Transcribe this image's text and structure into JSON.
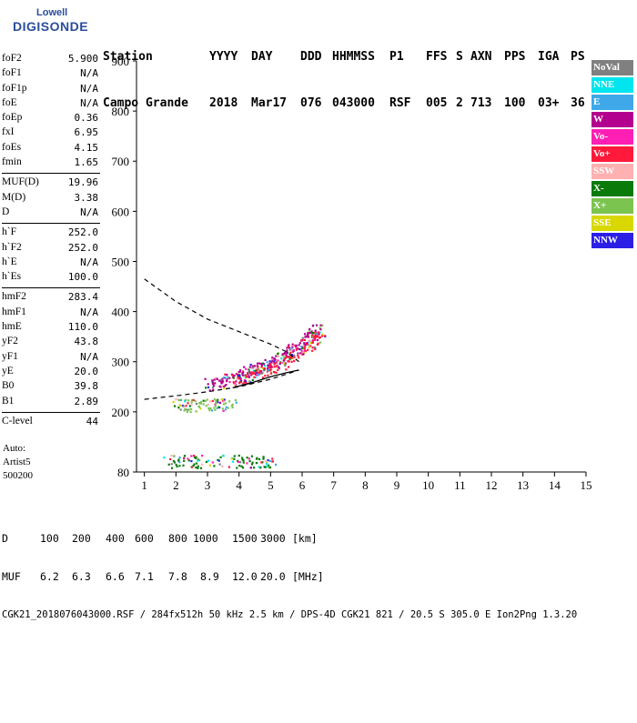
{
  "logo": {
    "line1": "Lowell",
    "line2": "DIGISONDE"
  },
  "header": {
    "row1": [
      "Station",
      "YYYY",
      "DAY",
      "DDD",
      "HHMMSS",
      "P1",
      "FFS",
      "S",
      "AXN",
      "PPS",
      "IGA",
      "PS"
    ],
    "row2": [
      "Campo Grande",
      "2018",
      "Mar17",
      "076",
      "043000",
      "RSF",
      "005",
      "2",
      "713",
      "100",
      "03+",
      "36"
    ]
  },
  "params": [
    [
      {
        "name": "foF2",
        "value": "5.900"
      },
      {
        "name": "foF1",
        "value": "N/A"
      },
      {
        "name": "foF1p",
        "value": "N/A"
      },
      {
        "name": "foE",
        "value": "N/A"
      },
      {
        "name": "foEp",
        "value": "0.36"
      },
      {
        "name": "fxI",
        "value": "6.95"
      },
      {
        "name": "foEs",
        "value": "4.15"
      },
      {
        "name": "fmin",
        "value": "1.65"
      }
    ],
    [
      {
        "name": "MUF(D)",
        "value": "19.96"
      },
      {
        "name": "M(D)",
        "value": "3.38"
      },
      {
        "name": "D",
        "value": "N/A"
      }
    ],
    [
      {
        "name": "h`F",
        "value": "252.0"
      },
      {
        "name": "h`F2",
        "value": "252.0"
      },
      {
        "name": "h`E",
        "value": "N/A"
      },
      {
        "name": "h`Es",
        "value": "100.0"
      }
    ],
    [
      {
        "name": "hmF2",
        "value": "283.4"
      },
      {
        "name": "hmF1",
        "value": "N/A"
      },
      {
        "name": "hmE",
        "value": "110.0"
      },
      {
        "name": "yF2",
        "value": "43.8"
      },
      {
        "name": "yF1",
        "value": "N/A"
      },
      {
        "name": "yE",
        "value": "20.0"
      },
      {
        "name": "B0",
        "value": "39.8"
      },
      {
        "name": "B1",
        "value": "2.89"
      }
    ],
    [
      {
        "name": "C-level",
        "value": "44"
      }
    ]
  ],
  "auto": {
    "line1": "Auto:",
    "line2": "Artist5",
    "line3": "500200"
  },
  "legend": [
    {
      "label": "NoVal",
      "color": "#808080"
    },
    {
      "label": "NNE",
      "color": "#00e5ee"
    },
    {
      "label": "E",
      "color": "#3fa8e8"
    },
    {
      "label": "W",
      "color": "#b3008f"
    },
    {
      "label": "Vo-",
      "color": "#ff1fb4"
    },
    {
      "label": "Vo+",
      "color": "#ff1a3c"
    },
    {
      "label": "SSW",
      "color": "#ffb0b0"
    },
    {
      "label": "X-",
      "color": "#0a7a0a"
    },
    {
      "label": "X+",
      "color": "#7cc450"
    },
    {
      "label": "SSE",
      "color": "#d8d800"
    },
    {
      "label": "NNW",
      "color": "#2b1fe6"
    }
  ],
  "bottom": {
    "row_d": [
      "D",
      "100",
      "200",
      "400",
      "600",
      "800",
      "1000",
      "1500",
      "3000",
      "[km]"
    ],
    "row_muf": [
      "MUF",
      "6.2",
      "6.3",
      "6.6",
      "7.1",
      "7.8",
      "8.9",
      "12.0",
      "20.0",
      "[MHz]"
    ],
    "footer": "CGK21_2018076043000.RSF / 284fx512h 50 kHz 2.5 km / DPS-4D CGK21 821 / 20.5 S 305.0 E Ion2Png 1.3.20"
  },
  "chart_data": {
    "type": "scatter",
    "title": "",
    "xlabel": "",
    "ylabel": "",
    "xlim": [
      0.75,
      15
    ],
    "ylim": [
      80,
      900
    ],
    "x_ticks": [
      "1",
      "2",
      "3",
      "4",
      "5",
      "6",
      "7",
      "8",
      "9",
      "10",
      "11",
      "12",
      "13",
      "14",
      "15"
    ],
    "y_ticks": [
      "80",
      "200",
      "300",
      "400",
      "500",
      "600",
      "700",
      "800",
      "900"
    ],
    "traces": [
      {
        "name": "F2 O-trace",
        "color": "#b3008f",
        "points": [
          [
            3.0,
            255
          ],
          [
            3.5,
            262
          ],
          [
            4.0,
            272
          ],
          [
            4.5,
            285
          ],
          [
            5.0,
            298
          ],
          [
            5.4,
            312
          ],
          [
            5.8,
            330
          ],
          [
            6.2,
            350
          ],
          [
            6.5,
            365
          ]
        ]
      },
      {
        "name": "F2 X-trace",
        "color": "#ff1a3c",
        "points": [
          [
            3.8,
            262
          ],
          [
            4.3,
            270
          ],
          [
            4.8,
            282
          ],
          [
            5.3,
            296
          ],
          [
            5.8,
            318
          ],
          [
            6.3,
            338
          ],
          [
            6.6,
            356
          ]
        ]
      },
      {
        "name": "Es layer",
        "color": "#0a7a0a",
        "points": [
          [
            1.7,
            102
          ],
          [
            2.5,
            102
          ],
          [
            3.5,
            103
          ],
          [
            4.5,
            102
          ],
          [
            5.3,
            103
          ]
        ]
      },
      {
        "name": "lower layer",
        "color": "#7cc450",
        "points": [
          [
            1.9,
            215
          ],
          [
            2.5,
            214
          ],
          [
            3.2,
            215
          ],
          [
            3.8,
            216
          ]
        ]
      }
    ],
    "profile_curve": [
      [
        1.0,
        225
      ],
      [
        2.0,
        232
      ],
      [
        3.0,
        240
      ],
      [
        4.0,
        250
      ],
      [
        5.0,
        265
      ],
      [
        5.5,
        275
      ],
      [
        5.9,
        283.4
      ]
    ],
    "virtual_curve": [
      [
        1.0,
        465
      ],
      [
        2.0,
        420
      ],
      [
        3.0,
        385
      ],
      [
        4.0,
        360
      ],
      [
        5.0,
        335
      ],
      [
        5.5,
        320
      ],
      [
        5.9,
        300
      ]
    ]
  }
}
